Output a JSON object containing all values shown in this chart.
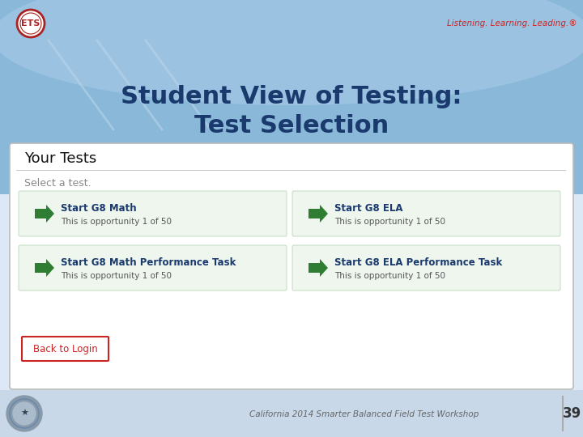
{
  "title_line1": "Student View of Testing:",
  "title_line2": "Test Selection",
  "title_color": "#1a3a6e",
  "slide_bg": "#dce8f5",
  "white_top_bg": "#ffffff",
  "blue_arc_bg": "#7ab0d8",
  "blue_arc_light": "#a8cae8",
  "your_tests_label": "Your Tests",
  "select_label": "Select a test.",
  "tests": [
    {
      "title": "Start G8 Math",
      "sub": "This is opportunity 1 of 50"
    },
    {
      "title": "Start G8 ELA",
      "sub": "This is opportunity 1 of 50"
    },
    {
      "title": "Start G8 Math Performance Task",
      "sub": "This is opportunity 1 of 50"
    },
    {
      "title": "Start G8 ELA Performance Task",
      "sub": "This is opportunity 1 of 50"
    }
  ],
  "test_box_color": "#eef6ee",
  "test_box_border": "#c8dfc8",
  "arrow_color": "#2e7d32",
  "back_btn_label": "Back to Login",
  "back_btn_color": "#ffffff",
  "back_btn_border": "#cc2222",
  "back_btn_text_color": "#cc2222",
  "footer_text": "California 2014 Smarter Balanced Field Test Workshop",
  "footer_num": "39",
  "footer_color": "#666666",
  "ets_label": "ETS",
  "listening_text": "Listening. Learning. Leading.®",
  "listening_color": "#cc2222",
  "white_panel_bg": "#ffffff",
  "white_panel_border": "#bbbbbb",
  "divider_color": "#cccccc",
  "select_color": "#888888",
  "your_tests_color": "#111111",
  "title_fontsize": 22,
  "btn_title_color": "#1a3a6e",
  "btn_sub_color": "#555555"
}
